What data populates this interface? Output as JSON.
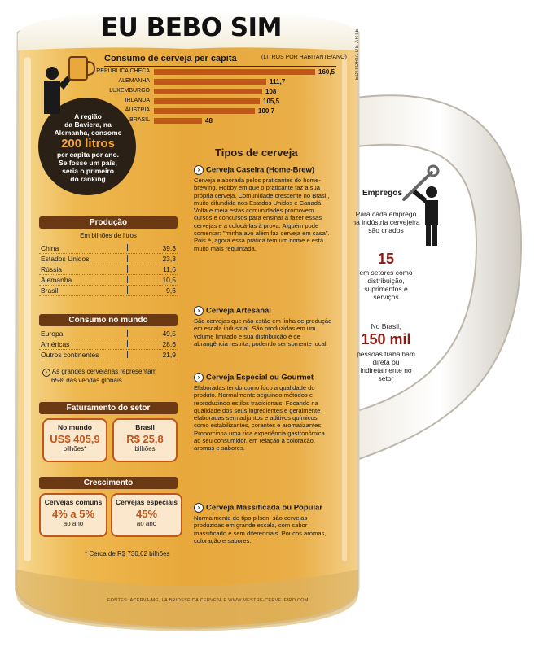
{
  "title": "EU BEBO SIM",
  "credit": "EDITORIA DE ARTE",
  "ranking": {
    "title": "Consumo de cerveja per capita",
    "unit": "(LITROS POR HABITANTE/ANO)",
    "max": 160.5,
    "items": [
      {
        "country": "REPÚBLICA CHECA",
        "value": 160.5,
        "label": "160,5"
      },
      {
        "country": "ALEMANHA",
        "value": 111.7,
        "label": "111,7"
      },
      {
        "country": "LUXEMBURGO",
        "value": 108,
        "label": "108"
      },
      {
        "country": "IRLANDA",
        "value": 105.5,
        "label": "105,5"
      },
      {
        "country": "ÁUSTRIA",
        "value": 100.7,
        "label": "100,7"
      },
      {
        "country": "BRASIL",
        "value": 48,
        "label": "48"
      }
    ]
  },
  "bavaria": {
    "line1": "A região",
    "line2": "da Baviera, na",
    "line3": "Alemanha, consome",
    "big": "200 litros",
    "line4": "per capita por ano.",
    "line5": "Se fosse um país,",
    "line6": "seria o primeiro",
    "line7": "do ranking"
  },
  "producao": {
    "title": "Produção",
    "subtitle": "Em bilhões de litros",
    "rows": [
      {
        "name": "China",
        "value": "39,3"
      },
      {
        "name": "Estados Unidos",
        "value": "23,3"
      },
      {
        "name": "Rússia",
        "value": "11,6"
      },
      {
        "name": "Alemanha",
        "value": "10,5"
      },
      {
        "name": "Brasil",
        "value": "9,6"
      }
    ]
  },
  "consumo": {
    "title": "Consumo no mundo",
    "rows": [
      {
        "name": "Europa",
        "value": "49,5"
      },
      {
        "name": "Américas",
        "value": "28,6"
      },
      {
        "name": "Outros continentes",
        "value": "21,9"
      }
    ],
    "note_line1": "As grandes cervejarias representam",
    "note_line2": "65% das vendas globais"
  },
  "faturamento": {
    "title": "Faturamento do setor",
    "cards": [
      {
        "label": "No mundo",
        "value": "US$ 405,9",
        "sub": "bilhões*"
      },
      {
        "label": "Brasil",
        "value": "R$ 25,8",
        "sub": "bilhões"
      }
    ]
  },
  "crescimento": {
    "title": "Crescimento",
    "cards": [
      {
        "label": "Cervejas comuns",
        "value": "4% a 5%",
        "sub": "ao ano"
      },
      {
        "label": "Cervejas especiais",
        "value": "45%",
        "sub": "ao ano"
      }
    ],
    "footnote": "* Cerca de R$ 730,62 bilhões"
  },
  "tipos": {
    "title": "Tipos de cerveja",
    "items": [
      {
        "name": "Cerveja Caseira (Home-Brew)",
        "text": "Cerveja elaborada pelos praticantes do home-brewing. Hobby em que o praticante faz a sua própria cerveja. Comunidade crescente no Brasil, muito difundida nos Estados Unidos e Canadá. Volta e meia estas comunidades promovem cursos e concursos para ensinar a fazer essas cervejas e a colocá-las à prova. Alguém pode comentar: \"minha avó além faz cerveja em casa\". Pois é, agora essa prática tem um nome e está muito mais requintada."
      },
      {
        "name": "Cerveja Artesanal",
        "text": "São cervejas que não estão em linha de produção em escala industrial. São produzidas em um volume limitado e sua distribuição é de abrangência restrita, podendo ser somente local."
      },
      {
        "name": "Cerveja Especial ou Gourmet",
        "text": "Elaboradas tendo como foco a qualidade do produto. Normalmente seguindo métodos e reproduzindo estilos tradicionais. Focando na qualidade dos seus ingredientes e geralmente elaboradas sem adjuntos e aditivos químicos, como estabilizantes, corantes e aromatizantes. Proporciona uma rica experiência gastronômica ao seu consumidor, em relação à coloração, aromas e sabores."
      },
      {
        "name": "Cerveja Massificada ou Popular",
        "text": "Normalmente do tipo pilsen, são cervejas produzidas em grande escala, com sabor massificado e sem diferenciais. Poucos aromas, coloração e sabores."
      }
    ]
  },
  "empregos": {
    "title": "Empregos",
    "text1": "Para cada emprego na indústria cervejeira são criados",
    "num1": "15",
    "text2": "em setores como distribuição, suprimentos e serviços",
    "text3": "No Brasil,",
    "num2": "150 mil",
    "text4": "pessoas trabalham direta ou indiretamente no setor"
  },
  "sources": "FONTES: ACERVA-MG, LA BRIOSSE DA CERVEJA E WWW.MESTRE-CERVEJEIRO.COM",
  "colors": {
    "accent": "#c1561b",
    "panel": "#6b3a14",
    "beer": "#e7a63a",
    "number": "#8b1b12"
  }
}
